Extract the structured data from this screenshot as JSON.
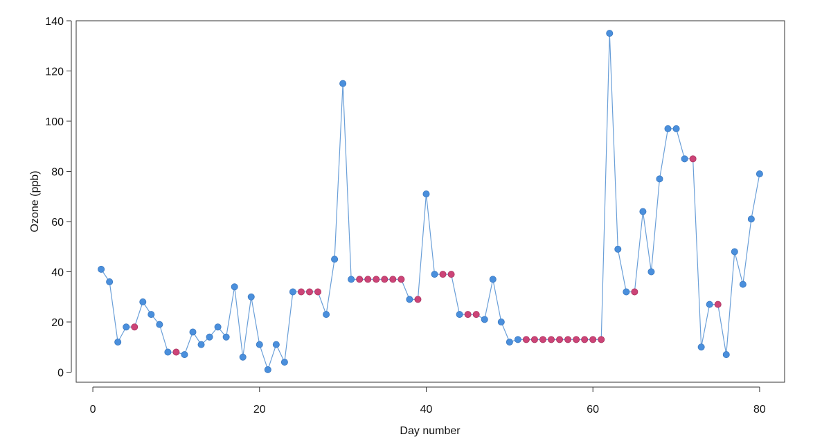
{
  "chart_data": {
    "type": "line",
    "title": "",
    "xlabel": "Day number",
    "ylabel": "Ozone (ppb)",
    "xlim": [
      -2,
      83
    ],
    "ylim": [
      -4,
      140
    ],
    "xticks": [
      0,
      20,
      40,
      60,
      80
    ],
    "yticks": [
      0,
      20,
      40,
      60,
      80,
      100,
      120,
      140
    ],
    "grid": false,
    "legend": "none",
    "colors": {
      "line": "#6a9fd8",
      "observed": "#4a8fdc",
      "imputed": "#cc4477",
      "axis": "#333333"
    },
    "series": [
      {
        "name": "Ozone",
        "x": [
          1,
          2,
          3,
          4,
          5,
          6,
          7,
          8,
          9,
          10,
          11,
          12,
          13,
          14,
          15,
          16,
          17,
          18,
          19,
          20,
          21,
          22,
          23,
          24,
          25,
          26,
          27,
          28,
          29,
          30,
          31,
          32,
          33,
          34,
          35,
          36,
          37,
          38,
          39,
          40,
          41,
          42,
          43,
          44,
          45,
          46,
          47,
          48,
          49,
          50,
          51,
          52,
          53,
          54,
          55,
          56,
          57,
          58,
          59,
          60,
          61,
          62,
          63,
          64,
          65,
          66,
          67,
          68,
          69,
          70,
          71,
          72,
          73,
          74,
          75,
          76,
          77,
          78,
          79,
          80
        ],
        "y": [
          41,
          36,
          12,
          18,
          18,
          28,
          23,
          19,
          8,
          8,
          7,
          16,
          11,
          14,
          18,
          14,
          34,
          6,
          30,
          11,
          1,
          11,
          4,
          32,
          32,
          32,
          32,
          23,
          45,
          115,
          37,
          37,
          37,
          37,
          37,
          37,
          37,
          29,
          29,
          71,
          39,
          39,
          39,
          23,
          23,
          23,
          21,
          37,
          20,
          12,
          13,
          13,
          13,
          13,
          13,
          13,
          13,
          13,
          13,
          13,
          13,
          135,
          49,
          32,
          32,
          64,
          40,
          77,
          97,
          97,
          85,
          85,
          10,
          27,
          27,
          7,
          48,
          35,
          61,
          79
        ],
        "imputed": [
          0,
          0,
          0,
          0,
          1,
          0,
          0,
          0,
          0,
          1,
          0,
          0,
          0,
          0,
          0,
          0,
          0,
          0,
          0,
          0,
          0,
          0,
          0,
          0,
          1,
          1,
          1,
          0,
          0,
          0,
          0,
          1,
          1,
          1,
          1,
          1,
          1,
          0,
          1,
          0,
          0,
          1,
          1,
          0,
          1,
          1,
          0,
          0,
          0,
          0,
          0,
          1,
          1,
          1,
          1,
          1,
          1,
          1,
          1,
          1,
          1,
          0,
          0,
          0,
          1,
          0,
          0,
          0,
          0,
          0,
          0,
          1,
          0,
          0,
          1,
          0,
          0,
          0,
          0,
          0
        ]
      }
    ]
  }
}
